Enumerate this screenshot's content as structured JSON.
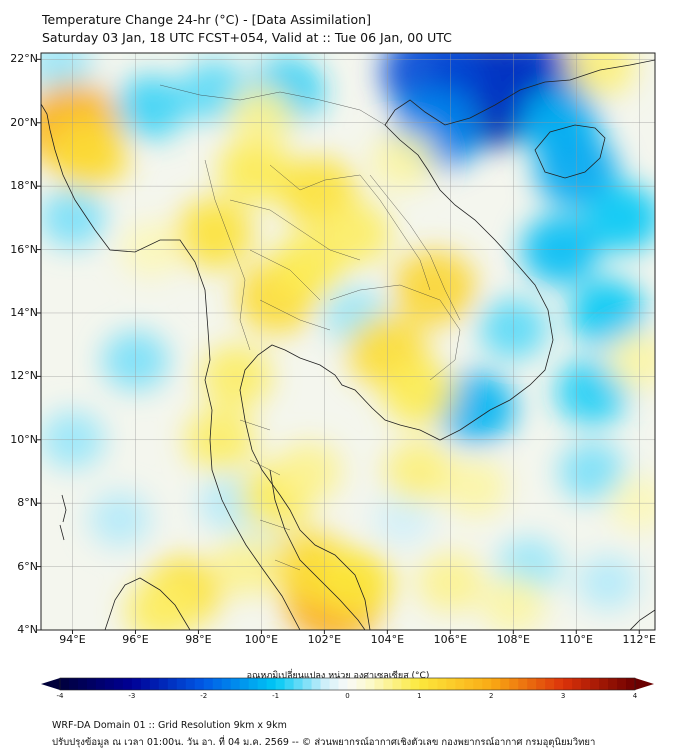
{
  "title": {
    "line1": "Temperature Change 24-hr (°C) - [Data Assimilation]",
    "line2": "Saturday 03 Jan, 18 UTC FCST+054, Valid at :: Tue 06 Jan, 00 UTC"
  },
  "map": {
    "lat_labels": [
      "22°N",
      "20°N",
      "18°N",
      "16°N",
      "14°N",
      "12°N",
      "10°N",
      "8°N",
      "6°N",
      "4°N"
    ],
    "lat_values": [
      22,
      20,
      18,
      16,
      14,
      12,
      10,
      8,
      6,
      4
    ],
    "lon_labels": [
      "94°E",
      "96°E",
      "98°E",
      "100°E",
      "102°E",
      "104°E",
      "106°E",
      "108°E",
      "110°E",
      "112°E"
    ],
    "lon_values": [
      94,
      96,
      98,
      100,
      102,
      104,
      106,
      108,
      110,
      112
    ],
    "lon_range": [
      93,
      112.5
    ],
    "lat_range": [
      4,
      22.2
    ],
    "field_blobs": [
      {
        "lon": 107.2,
        "lat": 21.0,
        "value": -3.0
      },
      {
        "lon": 105.5,
        "lat": 21.6,
        "value": -2.2
      },
      {
        "lon": 108.6,
        "lat": 21.2,
        "value": -2.4
      },
      {
        "lon": 105.6,
        "lat": 19.8,
        "value": -1.6
      },
      {
        "lon": 109.5,
        "lat": 20.0,
        "value": -1.2
      },
      {
        "lon": 110.0,
        "lat": 18.5,
        "value": -1.3
      },
      {
        "lon": 111.5,
        "lat": 17.0,
        "value": -1.0
      },
      {
        "lon": 109.5,
        "lat": 16.0,
        "value": -1.1
      },
      {
        "lon": 111.0,
        "lat": 14.0,
        "value": -1.0
      },
      {
        "lon": 108.0,
        "lat": 13.5,
        "value": -0.7
      },
      {
        "lon": 106.8,
        "lat": 11.0,
        "value": -1.2
      },
      {
        "lon": 110.5,
        "lat": 11.5,
        "value": -0.9
      },
      {
        "lon": 110.5,
        "lat": 9.0,
        "value": -0.6
      },
      {
        "lon": 100.8,
        "lat": 21.0,
        "value": -0.9
      },
      {
        "lon": 98.5,
        "lat": 21.0,
        "value": -0.7
      },
      {
        "lon": 96.5,
        "lat": 20.5,
        "value": -0.8
      },
      {
        "lon": 93.6,
        "lat": 21.8,
        "value": -0.5
      },
      {
        "lon": 94.0,
        "lat": 17.0,
        "value": -0.6
      },
      {
        "lon": 96.0,
        "lat": 12.5,
        "value": -0.6
      },
      {
        "lon": 94.0,
        "lat": 10.0,
        "value": -0.5
      },
      {
        "lon": 95.5,
        "lat": 7.5,
        "value": -0.4
      },
      {
        "lon": 99.0,
        "lat": 8.0,
        "value": -0.4
      },
      {
        "lon": 100.0,
        "lat": 6.5,
        "value": -0.3
      },
      {
        "lon": 103.0,
        "lat": 13.9,
        "value": -0.5
      },
      {
        "lon": 104.5,
        "lat": 7.5,
        "value": -0.3
      },
      {
        "lon": 108.5,
        "lat": 6.0,
        "value": -0.5
      },
      {
        "lon": 111.0,
        "lat": 5.5,
        "value": -0.4
      },
      {
        "lon": 94.0,
        "lat": 19.9,
        "value": 1.9
      },
      {
        "lon": 94.5,
        "lat": 19.0,
        "value": 1.2
      },
      {
        "lon": 98.5,
        "lat": 16.5,
        "value": 1.1
      },
      {
        "lon": 99.8,
        "lat": 18.5,
        "value": 0.9
      },
      {
        "lon": 101.8,
        "lat": 17.8,
        "value": 1.1
      },
      {
        "lon": 100.5,
        "lat": 14.5,
        "value": 1.2
      },
      {
        "lon": 101.5,
        "lat": 15.5,
        "value": 0.9
      },
      {
        "lon": 103.0,
        "lat": 16.5,
        "value": 0.8
      },
      {
        "lon": 105.5,
        "lat": 14.8,
        "value": 1.3
      },
      {
        "lon": 104.0,
        "lat": 12.8,
        "value": 1.2
      },
      {
        "lon": 105.0,
        "lat": 11.5,
        "value": 0.9
      },
      {
        "lon": 99.2,
        "lat": 12.0,
        "value": 0.8
      },
      {
        "lon": 98.7,
        "lat": 10.0,
        "value": 0.8
      },
      {
        "lon": 100.5,
        "lat": 8.2,
        "value": 0.9
      },
      {
        "lon": 101.5,
        "lat": 9.0,
        "value": 0.6
      },
      {
        "lon": 102.3,
        "lat": 5.0,
        "value": 2.0
      },
      {
        "lon": 101.5,
        "lat": 6.0,
        "value": 1.2
      },
      {
        "lon": 103.0,
        "lat": 5.5,
        "value": 1.0
      },
      {
        "lon": 97.5,
        "lat": 5.2,
        "value": 1.1
      },
      {
        "lon": 96.8,
        "lat": 4.6,
        "value": 0.8
      },
      {
        "lon": 99.5,
        "lat": 6.0,
        "value": 0.6
      },
      {
        "lon": 105.0,
        "lat": 9.0,
        "value": 0.7
      },
      {
        "lon": 106.8,
        "lat": 8.5,
        "value": 0.5
      },
      {
        "lon": 106.0,
        "lat": 5.5,
        "value": 0.6
      },
      {
        "lon": 108.0,
        "lat": 4.8,
        "value": 0.5
      },
      {
        "lon": 110.8,
        "lat": 21.8,
        "value": 0.7
      },
      {
        "lon": 112.0,
        "lat": 12.5,
        "value": 0.5
      },
      {
        "lon": 112.0,
        "lat": 8.0,
        "value": 0.4
      },
      {
        "lon": 96.5,
        "lat": 16.0,
        "value": 0.4
      },
      {
        "lon": 104.5,
        "lat": 18.8,
        "value": 0.5
      },
      {
        "lon": 100.0,
        "lat": 20.2,
        "value": 0.6
      }
    ]
  },
  "colorbar": {
    "title": "อุณหภูมิเปลี่ยนแปลง หน่วย องศาเซลเซียส (°C)",
    "min": -4,
    "max": 4,
    "ticks": [
      "-4",
      "-3",
      "-2",
      "-1",
      "0",
      "1",
      "2",
      "3",
      "4"
    ],
    "tick_values": [
      -4,
      -3,
      -2,
      -1,
      0,
      1,
      2,
      3,
      4
    ]
  },
  "footer": {
    "line1": "WRF-DA Domain 01 :: Grid Resolution 9km x 9km",
    "line2": "ปรับปรุงข้อมูล ณ เวลา 01:00น. วัน อา. ที่ 04 ม.ค. 2569 -- © ส่วนพยากรณ์อากาศเชิงตัวเลข กองพยากรณ์อากาศ กรมอุตุนิยมวิทยา"
  }
}
